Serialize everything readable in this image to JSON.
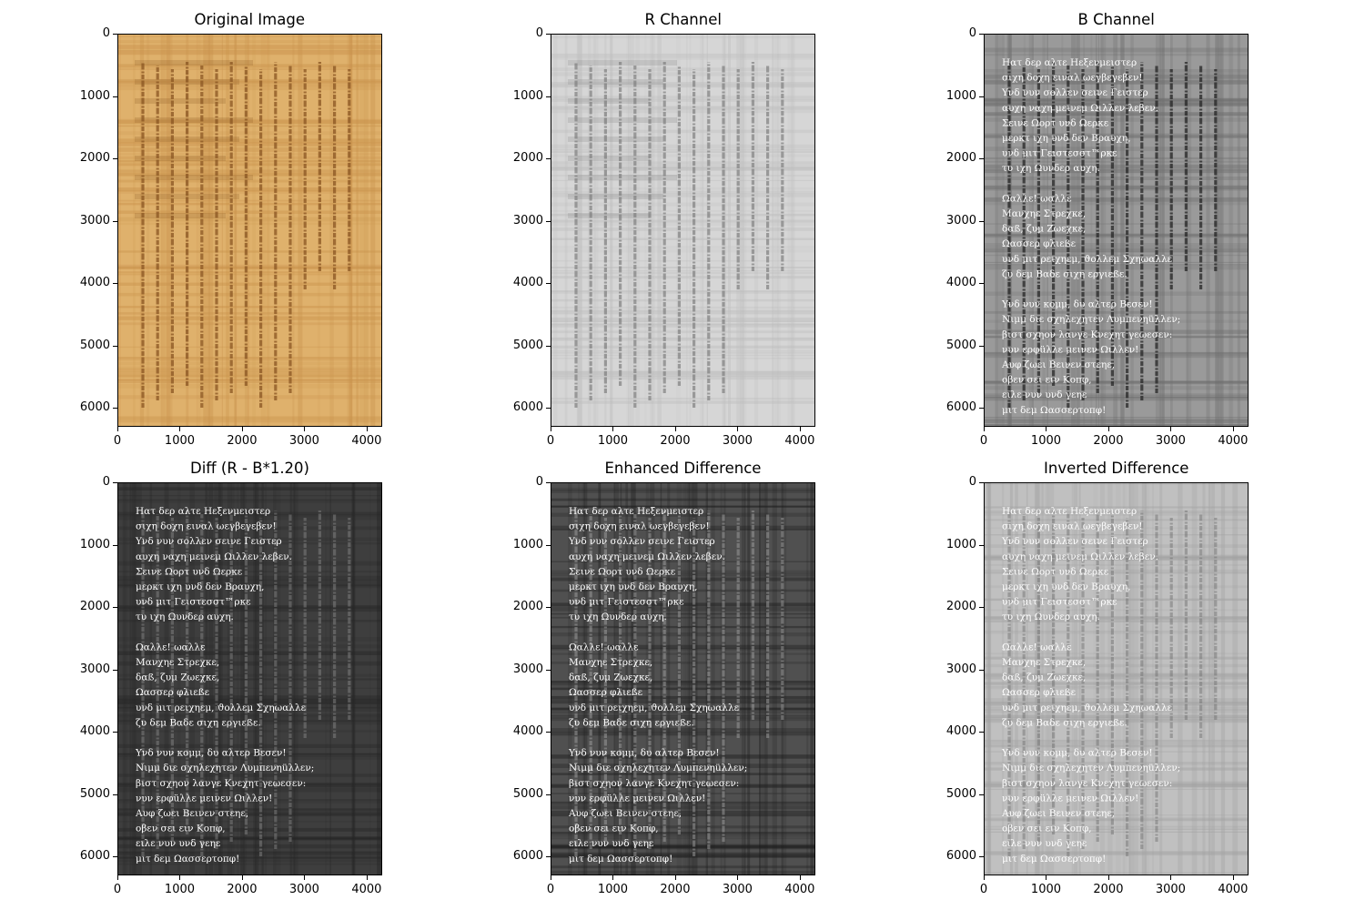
{
  "figure": {
    "x_ticks": [
      "0",
      "1000",
      "2000",
      "3000",
      "4000"
    ],
    "y_ticks": [
      "0",
      "1000",
      "2000",
      "3000",
      "4000",
      "5000",
      "6000"
    ],
    "panels": [
      {
        "title": "Original Image",
        "style": "original"
      },
      {
        "title": "R Channel",
        "style": "rchannel"
      },
      {
        "title": "B Channel",
        "style": "bchannel"
      },
      {
        "title": "Diff (R - B*1.20)",
        "style": "diff"
      },
      {
        "title": "Enhanced Difference",
        "style": "enhanced"
      },
      {
        "title": "Inverted Difference",
        "style": "inverted"
      }
    ],
    "hidden_text": [
      "Ηατ δερ αλτε Ηεξενμειστερ",
      "σιχη δοχη ειναλ ωεγβεγεβεν!",
      "Υνδ νυν σολλεν σεινε Γειστερ",
      "αυχη ναχη μεινεμ Ωιλλεν λεβεν.",
      "Σεινε Ωορτ υνδ Ωερκε",
      "μερκτ ιχη υνδ δεν Βραυχη,",
      "υνδ μιτ Γειστεσστ™ρκε",
      "τυ ιχη Ωυνδερ αυχη.",
      "",
      "Ωαλλε! ωαλλε",
      "Μανχηε Στρεχκε,",
      "δαß, ζυμ Ζωεχκε,",
      "Ωασσερ φλιεßε",
      "υνδ μιτ ρειχηεμ, ϑολλεμ Σχηωαλλε",
      "ζυ δεμ Βαδε σιχη εργιεßε.",
      "",
      "Υνδ νυν κομμ, δυ αλτερ Βεσεν!",
      "Νιμμ διε σχηλεχητεν Λυμπενηüλλεν;",
      "βιστ σχηον λανγε Κνεχητ γεωεσεν:",
      "νυν ερφüλλε μεινεν Ωιλλεν!",
      "Αυφ ζωει Βεινεν στεηε,",
      "οβεν σει ειν Κοπφ,",
      "ειλε νυν υνδ γεηε",
      "μιτ δεμ Ωασσερτοπφ!"
    ]
  }
}
